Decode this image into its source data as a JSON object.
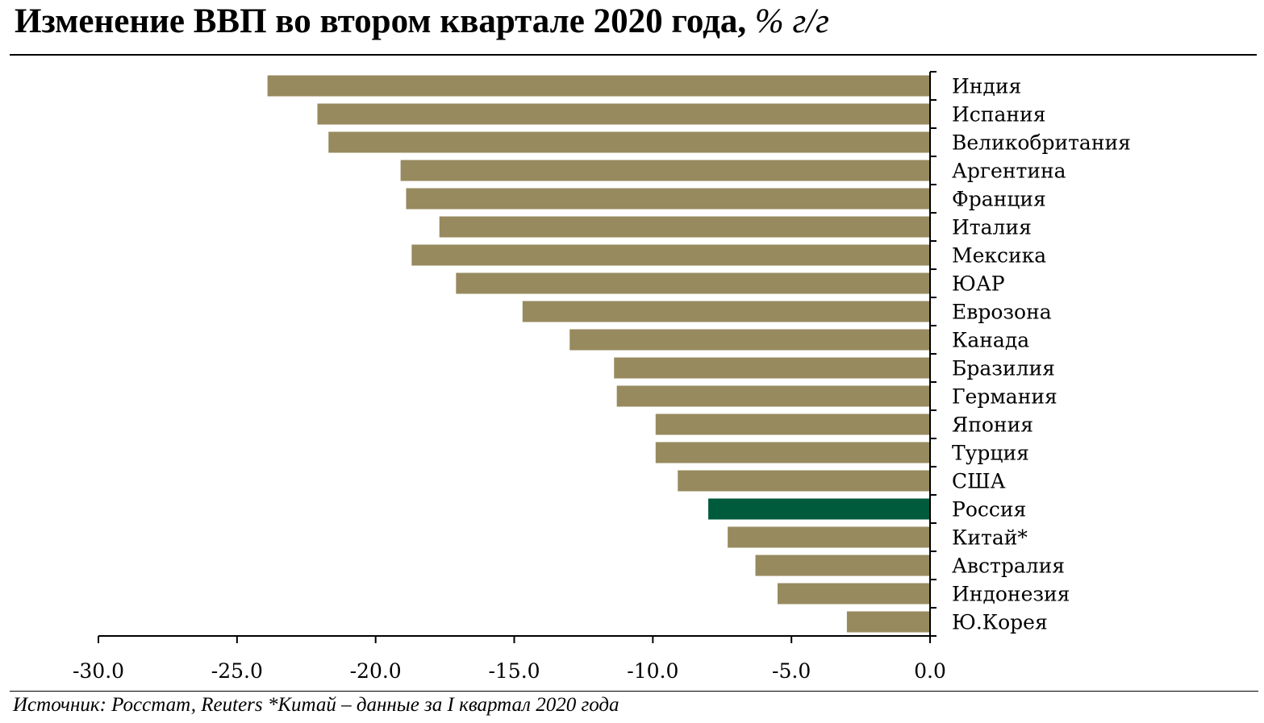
{
  "title": {
    "main": "Изменение ВВП во втором квартале 2020 года,",
    "unit": "% г/г"
  },
  "source": "Источник: Росстат, Reuters *Китай – данные за I квартал 2020 года",
  "colors": {
    "bar": "#978a5e",
    "highlight": "#005a3c"
  },
  "chart_data": {
    "type": "bar",
    "orientation": "horizontal",
    "title": "Изменение ВВП во втором квартале 2020 года, % г/г",
    "categories": [
      "Индия",
      "Испания",
      "Великобритания",
      "Аргентина",
      "Франция",
      "Италия",
      "Мексика",
      "ЮАР",
      "Еврозона",
      "Канада",
      "Бразилия",
      "Германия",
      "Япония",
      "Турция",
      "США",
      "Россия",
      "Китай*",
      "Австралия",
      "Индонезия",
      "Ю.Корея"
    ],
    "values": [
      -23.9,
      -22.1,
      -21.7,
      -19.1,
      -18.9,
      -17.7,
      -18.7,
      -17.1,
      -14.7,
      -13.0,
      -11.4,
      -11.3,
      -9.9,
      -9.9,
      -9.1,
      -8.0,
      -7.3,
      -6.3,
      -5.5,
      -3.0
    ],
    "highlight": "Россия",
    "xlim": [
      -30,
      0
    ],
    "xticks": [
      -30,
      -25,
      -20,
      -15,
      -10,
      -5,
      0
    ],
    "xtick_labels": [
      "-30.0",
      "-25.0",
      "-20.0",
      "-15.0",
      "-10.0",
      "-5.0",
      "0.0"
    ],
    "xlabel": "",
    "ylabel": "",
    "grid": false,
    "legend": "none"
  }
}
